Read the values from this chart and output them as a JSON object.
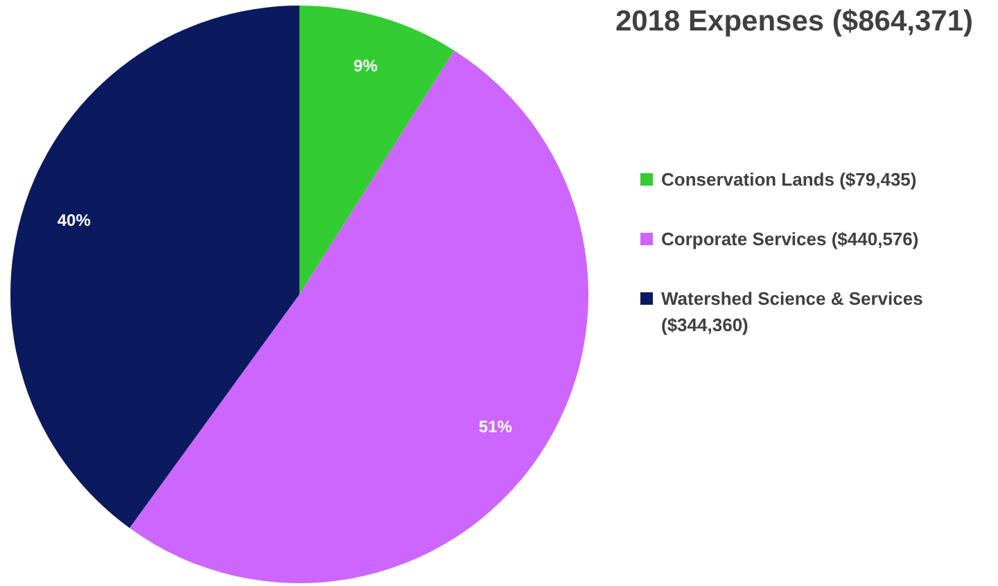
{
  "chart_data": {
    "type": "pie",
    "title": "2018 Expenses ($864,371)",
    "categories": [
      "Conservation Lands ($79,435)",
      "Corporate Services ($440,576)",
      "Watershed Science & Services ($344,360)"
    ],
    "values": [
      9,
      51,
      40
    ],
    "colors": [
      "#33cc33",
      "#cc66ff",
      "#0b1a5e"
    ],
    "value_labels": [
      "9%",
      "51%",
      "40%"
    ],
    "legend": "right"
  }
}
